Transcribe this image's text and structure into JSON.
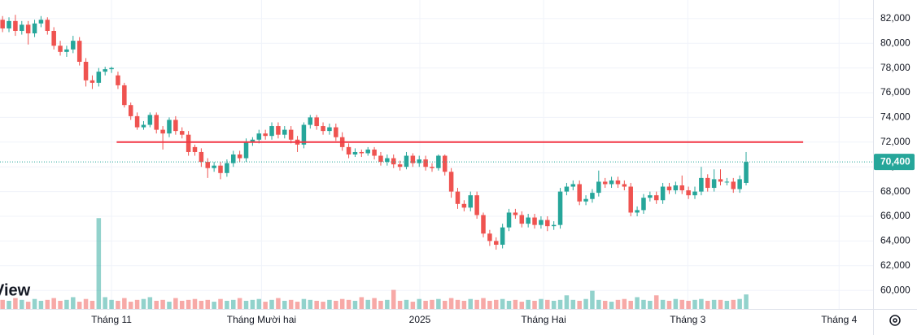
{
  "chart_data": {
    "type": "candlestick",
    "open": [
      81900,
      81200,
      81800,
      81000,
      81500,
      80800,
      81600,
      81900,
      81000,
      79800,
      79300,
      79500,
      80200,
      78500,
      77000,
      76800,
      77700,
      77900,
      77400,
      76600,
      75000,
      74100,
      73200,
      73400,
      74200,
      73000,
      72700,
      73800,
      72900,
      72600,
      71600,
      71200,
      70400,
      69900,
      70100,
      69500,
      70300,
      71000,
      70700,
      72000,
      72200,
      72700,
      72500,
      73300,
      72600,
      73000,
      72200,
      71800,
      73400,
      74000,
      73300,
      72900,
      73200,
      72400,
      71600,
      71000,
      71200,
      71100,
      71400,
      70900,
      70400,
      70700,
      70200,
      70000,
      70900,
      70300,
      70600,
      70000,
      69900,
      70900,
      69600,
      68000,
      67000,
      66700,
      67700,
      66100,
      64600,
      64000,
      63700,
      65100,
      66300,
      66100,
      65400,
      65900,
      65300,
      65700,
      65200,
      65300,
      68000,
      68400,
      68600,
      67200,
      67400,
      67900,
      68800,
      68600,
      68900,
      68600,
      68400,
      66300,
      66500,
      67500,
      67700,
      67300,
      68400,
      68100,
      68500,
      68100,
      67700,
      68000,
      69100,
      68300,
      69000,
      68800,
      68800,
      68200,
      68700
    ],
    "high": [
      82200,
      82100,
      82300,
      81800,
      81800,
      81900,
      82200,
      82100,
      81300,
      80200,
      79800,
      80600,
      80500,
      78800,
      77400,
      78000,
      78100,
      78100,
      77700,
      76800,
      75200,
      74400,
      73700,
      74400,
      74400,
      73300,
      74000,
      74100,
      73200,
      72900,
      71800,
      71500,
      70700,
      70400,
      70400,
      70600,
      71300,
      71300,
      72300,
      72400,
      73000,
      73000,
      73600,
      73600,
      73300,
      73300,
      72500,
      73600,
      74200,
      74200,
      73600,
      73500,
      73500,
      72800,
      71900,
      71500,
      71400,
      71600,
      71600,
      71200,
      71000,
      71000,
      70500,
      71200,
      71100,
      70900,
      70900,
      70300,
      71000,
      71000,
      69900,
      68300,
      67300,
      68000,
      68000,
      66300,
      64900,
      64300,
      65400,
      66600,
      66600,
      66400,
      66200,
      66200,
      66000,
      66000,
      65600,
      68300,
      68700,
      68900,
      68900,
      67700,
      68200,
      69700,
      69100,
      69200,
      69200,
      68900,
      68700,
      66800,
      67800,
      68000,
      68000,
      68700,
      68700,
      68800,
      69300,
      68400,
      68400,
      70000,
      69400,
      69800,
      69800,
      69100,
      69100,
      69300,
      71200
    ],
    "low": [
      80900,
      80900,
      80600,
      80700,
      79900,
      80500,
      81300,
      80700,
      79500,
      79000,
      78900,
      79200,
      78200,
      76500,
      76300,
      76500,
      77400,
      77600,
      76300,
      74800,
      73800,
      73000,
      73000,
      73200,
      72700,
      71400,
      72400,
      72600,
      72300,
      70900,
      70900,
      70000,
      69100,
      69600,
      69000,
      69200,
      70000,
      70400,
      70400,
      71700,
      71900,
      72200,
      72200,
      72300,
      72300,
      71900,
      71200,
      71500,
      73100,
      73000,
      72600,
      72600,
      72100,
      71300,
      70700,
      70800,
      70800,
      70900,
      70600,
      70100,
      70100,
      69900,
      69700,
      69800,
      70000,
      70000,
      69700,
      69600,
      69700,
      69300,
      67500,
      66600,
      66400,
      66400,
      65800,
      64300,
      63600,
      63300,
      63400,
      64800,
      65800,
      65100,
      65100,
      65000,
      65000,
      64800,
      64900,
      65000,
      67700,
      68100,
      66900,
      66900,
      67100,
      67600,
      68300,
      68300,
      68300,
      68100,
      66000,
      66000,
      66200,
      67200,
      67000,
      67000,
      67800,
      67800,
      67800,
      67400,
      67400,
      67700,
      68000,
      68000,
      68500,
      68500,
      67900,
      67900,
      68500
    ],
    "close": [
      81200,
      81800,
      81000,
      81500,
      80800,
      81600,
      81900,
      81000,
      79800,
      79300,
      79500,
      80200,
      78500,
      77000,
      76800,
      77700,
      77900,
      78000,
      76600,
      75000,
      74100,
      73200,
      73400,
      74200,
      73000,
      72700,
      73800,
      72900,
      72600,
      71200,
      71200,
      70400,
      69900,
      70100,
      69500,
      70300,
      71000,
      70700,
      72000,
      72200,
      72700,
      72500,
      73300,
      72600,
      73000,
      72200,
      71800,
      73400,
      74000,
      73300,
      72900,
      73200,
      72400,
      71600,
      71000,
      71200,
      71100,
      71400,
      70900,
      70400,
      70700,
      70200,
      70000,
      70900,
      70300,
      70600,
      70000,
      69900,
      70900,
      69600,
      68000,
      67000,
      66700,
      67700,
      66100,
      64600,
      64000,
      63700,
      65100,
      66300,
      66100,
      65400,
      65900,
      65300,
      65700,
      65200,
      65300,
      68000,
      68400,
      68600,
      67200,
      67400,
      67900,
      68800,
      68600,
      68900,
      68600,
      68400,
      66300,
      66500,
      67500,
      67700,
      67300,
      68400,
      68100,
      68500,
      68100,
      67700,
      68000,
      69100,
      68300,
      69000,
      68800,
      68800,
      68200,
      69000,
      70400
    ],
    "volume": [
      0.1,
      0.09,
      0.12,
      0.1,
      0.08,
      0.11,
      0.09,
      0.1,
      0.12,
      0.09,
      0.1,
      0.13,
      0.08,
      0.11,
      0.09,
      1.0,
      0.13,
      0.1,
      0.09,
      0.12,
      0.08,
      0.1,
      0.11,
      0.13,
      0.09,
      0.1,
      0.08,
      0.12,
      0.09,
      0.1,
      0.11,
      0.09,
      0.1,
      0.08,
      0.11,
      0.09,
      0.1,
      0.12,
      0.09,
      0.1,
      0.11,
      0.08,
      0.1,
      0.12,
      0.09,
      0.1,
      0.08,
      0.11,
      0.1,
      0.09,
      0.08,
      0.1,
      0.09,
      0.11,
      0.1,
      0.09,
      0.13,
      0.1,
      0.12,
      0.09,
      0.1,
      0.21,
      0.09,
      0.1,
      0.08,
      0.11,
      0.09,
      0.1,
      0.11,
      0.09,
      0.12,
      0.1,
      0.09,
      0.11,
      0.1,
      0.12,
      0.09,
      0.1,
      0.11,
      0.09,
      0.1,
      0.08,
      0.1,
      0.09,
      0.11,
      0.1,
      0.09,
      0.1,
      0.15,
      0.1,
      0.09,
      0.11,
      0.2,
      0.1,
      0.09,
      0.08,
      0.1,
      0.11,
      0.09,
      0.13,
      0.1,
      0.09,
      0.15,
      0.1,
      0.09,
      0.11,
      0.1,
      0.09,
      0.1,
      0.11,
      0.09,
      0.1,
      0.1,
      0.09,
      0.1,
      0.11,
      0.16
    ],
    "up_color": "#26a69a",
    "down_color": "#ef5350",
    "xlim": [
      -0.4,
      135.8
    ],
    "xticks": [
      {
        "value": 17.0,
        "label": "Tháng 11"
      },
      {
        "value": 40.4,
        "label": "Tháng Mười hai"
      },
      {
        "value": 65.1,
        "label": "2025"
      },
      {
        "value": 84.4,
        "label": "Tháng Hai"
      },
      {
        "value": 106.9,
        "label": "Tháng 3"
      },
      {
        "value": 130.5,
        "label": "Tháng 4"
      }
    ],
    "ylim": [
      58500,
      83500
    ],
    "yticks": [
      {
        "value": 60000,
        "label": "60,000"
      },
      {
        "value": 62000,
        "label": "62,000"
      },
      {
        "value": 64000,
        "label": "64,000"
      },
      {
        "value": 66000,
        "label": "66,000"
      },
      {
        "value": 68000,
        "label": "68,000"
      },
      {
        "value": 70000,
        "label": "70,000"
      },
      {
        "value": 72000,
        "label": "72,000"
      },
      {
        "value": 74000,
        "label": "74,000"
      },
      {
        "value": 76000,
        "label": "76,000"
      },
      {
        "value": 78000,
        "label": "78,000"
      },
      {
        "value": 80000,
        "label": "80,000"
      },
      {
        "value": 82000,
        "label": "82,000"
      }
    ],
    "volume_lim": [
      0,
      3.4
    ],
    "grid": true,
    "hline": {
      "value": 72000,
      "from": 17.8,
      "to": 124.9,
      "color": "#f23645"
    },
    "last_price": {
      "value": 70400,
      "label": "70,400",
      "color": "#26a69a"
    },
    "logo_text": "View"
  }
}
